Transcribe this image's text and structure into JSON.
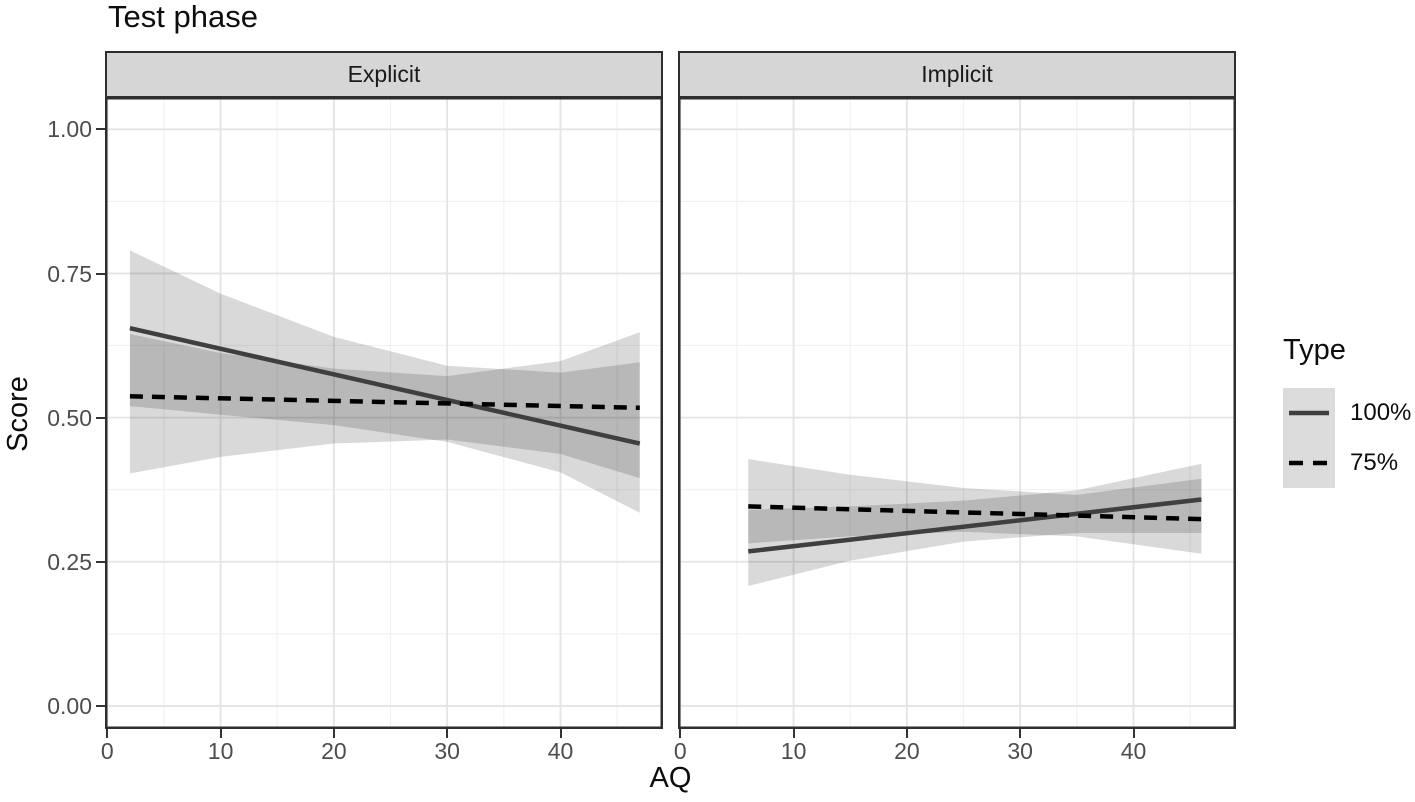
{
  "title": "Test phase",
  "chart_data": {
    "type": "line",
    "title": "Test phase",
    "xlabel": "AQ",
    "ylabel": "Score",
    "xlim": [
      -0.2,
      49.05
    ],
    "ylim": [
      -0.04,
      1.056
    ],
    "x_major_ticks": [
      0,
      10,
      20,
      30,
      40
    ],
    "x_minor_ticks": [
      5,
      15,
      25,
      35,
      45
    ],
    "x_tick_labels": [
      "0",
      "10",
      "20",
      "30",
      "40"
    ],
    "y_major_ticks": [
      0,
      0.25,
      0.5,
      0.75,
      1.0
    ],
    "y_minor_ticks": [
      0.125,
      0.375,
      0.625,
      0.875
    ],
    "y_tick_labels": [
      "0.00",
      "0.25",
      "0.50",
      "0.75",
      "1.00"
    ],
    "grid": true,
    "legend": {
      "title": "Type",
      "position": "right",
      "items": [
        {
          "label": "100%",
          "linestyle": "solid",
          "color": "#3f3f3f"
        },
        {
          "label": "75%",
          "linestyle": "dashed",
          "color": "#000000"
        }
      ]
    },
    "panels": [
      {
        "label": "Explicit",
        "series": [
          {
            "name": "100%",
            "linestyle": "solid",
            "color": "#3f3f3f",
            "line": {
              "x": [
                2,
                47
              ],
              "y": [
                0.655,
                0.455
              ]
            },
            "ci": {
              "x": [
                2,
                10,
                20,
                30,
                40,
                47
              ],
              "upper": [
                0.79,
                0.715,
                0.64,
                0.59,
                0.578,
                0.596
              ],
              "lower": [
                0.52,
                0.505,
                0.487,
                0.458,
                0.405,
                0.335
              ]
            }
          },
          {
            "name": "75%",
            "linestyle": "dashed",
            "color": "#000000",
            "line": {
              "x": [
                2,
                47
              ],
              "y": [
                0.537,
                0.517
              ]
            },
            "ci": {
              "x": [
                2,
                10,
                20,
                30,
                40,
                47
              ],
              "upper": [
                0.645,
                0.612,
                0.585,
                0.572,
                0.598,
                0.648
              ],
              "lower": [
                0.403,
                0.432,
                0.455,
                0.462,
                0.437,
                0.395
              ]
            }
          }
        ]
      },
      {
        "label": "Implicit",
        "series": [
          {
            "name": "100%",
            "linestyle": "solid",
            "color": "#3f3f3f",
            "line": {
              "x": [
                6,
                46
              ],
              "y": [
                0.268,
                0.358
              ]
            },
            "ci": {
              "x": [
                6,
                15,
                25,
                35,
                46
              ],
              "upper": [
                0.34,
                0.346,
                0.356,
                0.374,
                0.42
              ],
              "lower": [
                0.208,
                0.252,
                0.285,
                0.3,
                0.3
              ]
            }
          },
          {
            "name": "75%",
            "linestyle": "dashed",
            "color": "#000000",
            "line": {
              "x": [
                6,
                46
              ],
              "y": [
                0.346,
                0.324
              ]
            },
            "ci": {
              "x": [
                6,
                15,
                25,
                35,
                46
              ],
              "upper": [
                0.428,
                0.401,
                0.378,
                0.366,
                0.394
              ],
              "lower": [
                0.282,
                0.294,
                0.302,
                0.294,
                0.264
              ]
            }
          }
        ]
      }
    ],
    "style": {
      "band_color": "rgba(0,0,0,0.15)",
      "grid_major": "#e4e4e4",
      "grid_minor": "#f1f1f1",
      "panel_border": "#2e2e2e",
      "strip_fill": "#d6d6d6",
      "tick_label_color": "#4d4d4d",
      "line_width": 4.5,
      "dash_pattern": "13 9"
    }
  }
}
